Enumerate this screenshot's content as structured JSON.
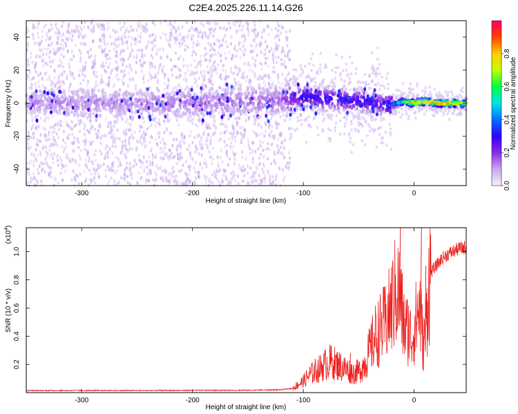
{
  "figure_title": "C2E4.2025.226.11.14.G26",
  "chart_data": [
    {
      "type": "heatmap",
      "title": "C2E4.2025.226.11.14.G26",
      "xlabel": "Height of straight line (km)",
      "ylabel": "Frequency (Hz)",
      "xlim": [
        -350,
        47
      ],
      "ylim": [
        -50,
        50
      ],
      "x_ticks": [
        -300,
        -200,
        -100,
        0
      ],
      "x_tick_labels": [
        "-300",
        "-200",
        "-100",
        "0"
      ],
      "y_ticks": [
        -40,
        -20,
        0,
        20,
        40
      ],
      "y_tick_labels": [
        "-40",
        "-20",
        "0",
        "20",
        "40"
      ],
      "colorbar": {
        "label": "Normalized spectral amplitude",
        "range": [
          0,
          1
        ],
        "ticks": [
          0.0,
          0.2,
          0.4,
          0.6,
          0.8
        ],
        "tick_labels": [
          "0.0",
          "0.2",
          "0.4",
          "0.6",
          "0.8"
        ],
        "colormap": [
          "#f5f0fb",
          "#c9a8ef",
          "#8a2be2",
          "#3000ff",
          "#0070ff",
          "#00e5e5",
          "#00ff40",
          "#c0ff00",
          "#ffd000",
          "#ff4000",
          "#ff0060"
        ]
      },
      "ridge": {
        "description_points_x": [
          -350,
          -300,
          -250,
          -200,
          -150,
          -120,
          -100,
          -80,
          -60,
          -40,
          -30,
          -20,
          -10,
          0,
          10,
          20,
          30,
          47
        ],
        "center_hz": [
          0,
          0,
          0,
          0,
          1,
          2,
          4,
          3,
          2,
          1,
          -1,
          -1,
          1,
          0,
          1,
          0,
          0,
          0
        ],
        "peak_amplitude": [
          0.12,
          0.12,
          0.13,
          0.14,
          0.15,
          0.16,
          0.3,
          0.3,
          0.28,
          0.3,
          0.25,
          0.4,
          0.6,
          0.9,
          0.85,
          0.9,
          0.9,
          0.7
        ]
      },
      "grid": false,
      "legend": "none"
    },
    {
      "type": "line",
      "xlabel": "Height of straight line (km)",
      "ylabel": "SNR (10 * v/v)",
      "multiplier_label": "(x10",
      "multiplier_exp": "4",
      "multiplier_close": ")",
      "xlim": [
        -350,
        47
      ],
      "ylim": [
        0,
        1.17
      ],
      "x_ticks": [
        -300,
        -200,
        -100,
        0
      ],
      "x_tick_labels": [
        "-300",
        "-200",
        "-100",
        "0"
      ],
      "y_ticks": [
        0.2,
        0.4,
        0.6,
        0.8,
        1.0
      ],
      "y_tick_labels": [
        "0.2",
        "0.4",
        "0.6",
        "0.8",
        "1.0"
      ],
      "series": [
        {
          "color": "#ee2020",
          "x": [
            -350,
            -300,
            -250,
            -200,
            -150,
            -120,
            -110,
            -100,
            -95,
            -90,
            -85,
            -80,
            -75,
            -70,
            -65,
            -60,
            -55,
            -50,
            -45,
            -40,
            -35,
            -30,
            -25,
            -20,
            -17,
            -15,
            -12,
            -10,
            -8,
            -5,
            -2,
            0,
            3,
            5,
            8,
            10,
            13,
            15,
            20,
            25,
            30,
            35,
            40,
            47
          ],
          "y": [
            0.015,
            0.015,
            0.015,
            0.016,
            0.017,
            0.02,
            0.03,
            0.08,
            0.12,
            0.15,
            0.17,
            0.2,
            0.22,
            0.2,
            0.18,
            0.16,
            0.14,
            0.15,
            0.2,
            0.3,
            0.4,
            0.45,
            0.5,
            0.62,
            0.7,
            0.72,
            0.65,
            0.5,
            0.45,
            0.45,
            0.38,
            0.45,
            0.55,
            0.62,
            0.35,
            0.4,
            0.75,
            0.85,
            0.9,
            0.95,
            0.98,
            1.0,
            1.02,
            1.03
          ],
          "spikes": [
            {
              "x": -68,
              "y": 0.27
            },
            {
              "x": -58,
              "y": 0.28
            },
            {
              "x": -13,
              "y": 1.17
            },
            {
              "x": 6,
              "y": 1.17
            },
            {
              "x": 10,
              "y": 0.9
            }
          ]
        }
      ],
      "grid": false,
      "legend": "none"
    }
  ]
}
